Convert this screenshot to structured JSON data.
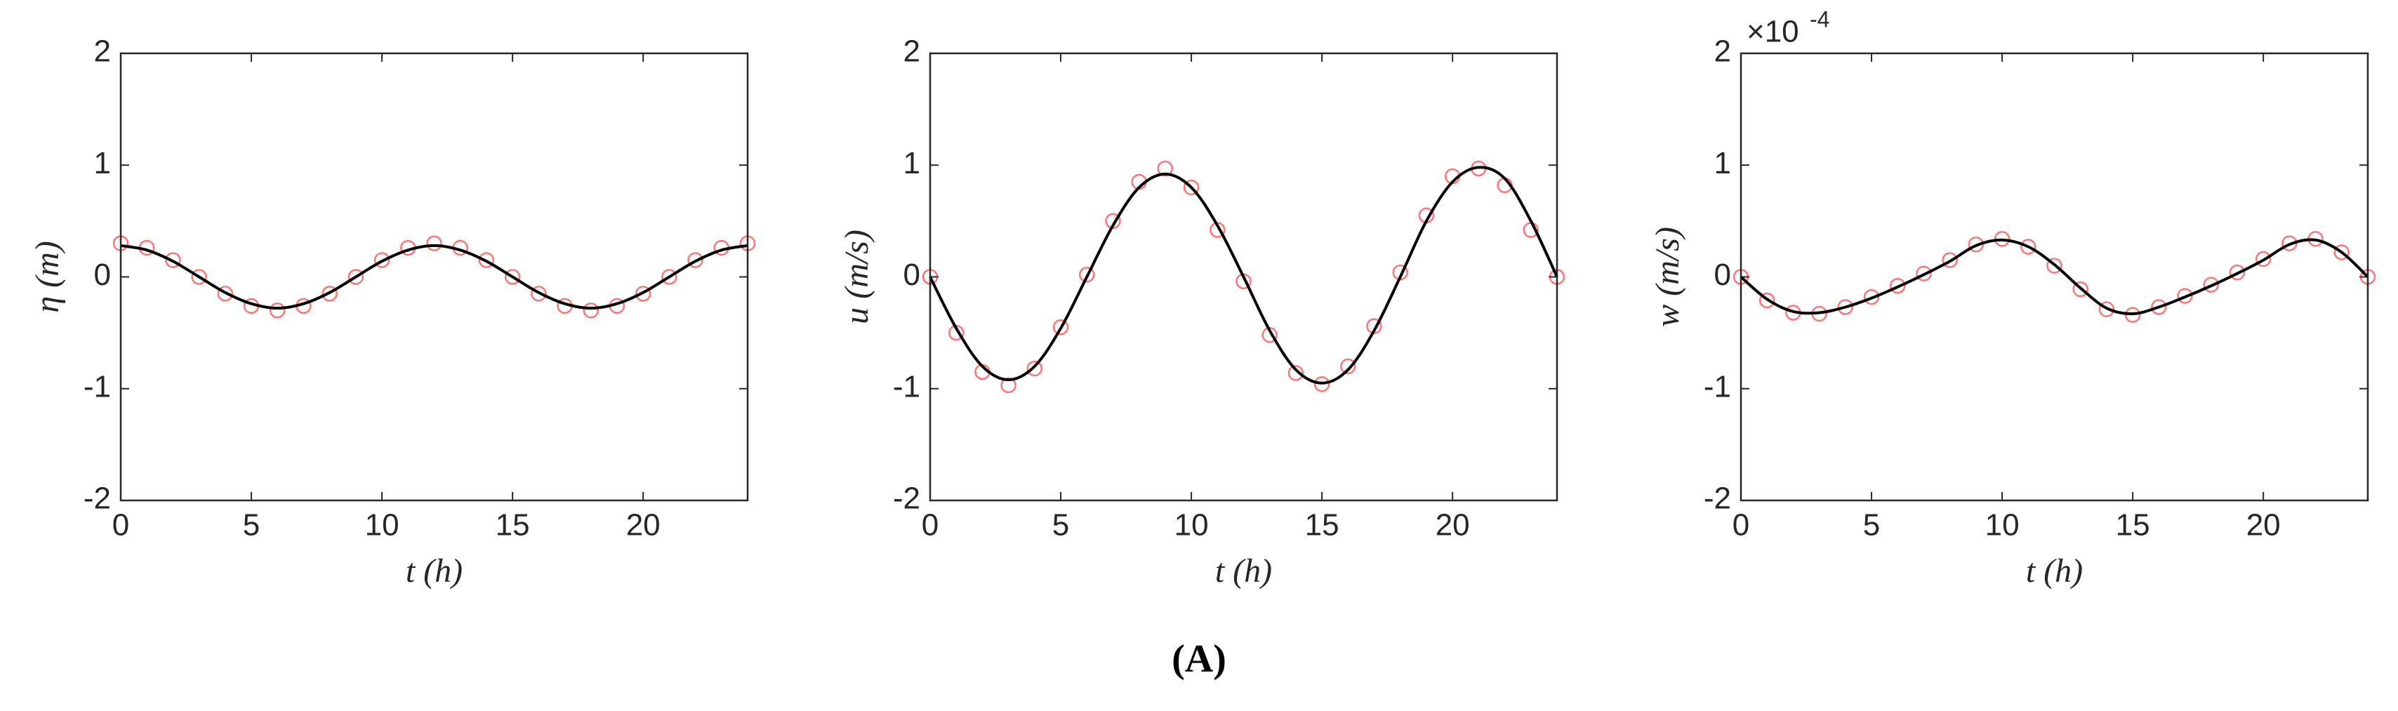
{
  "chart_data": [
    {
      "type": "line",
      "x_label": "t (h)",
      "y_label": "η (m)",
      "x": [
        0,
        1,
        2,
        3,
        4,
        5,
        6,
        7,
        8,
        9,
        10,
        11,
        12,
        13,
        14,
        15,
        16,
        17,
        18,
        19,
        20,
        21,
        22,
        23,
        24
      ],
      "series": [
        {
          "style": "markers",
          "color": "#ff0000",
          "values": [
            0.3,
            0.26,
            0.15,
            0,
            -0.15,
            -0.26,
            -0.3,
            -0.26,
            -0.15,
            0,
            0.15,
            0.26,
            0.3,
            0.26,
            0.15,
            0,
            -0.15,
            -0.26,
            -0.3,
            -0.26,
            -0.15,
            0,
            0.15,
            0.26,
            0.3
          ]
        },
        {
          "style": "line",
          "color": "#000000",
          "values": [
            0.28,
            0.24,
            0.14,
            0,
            -0.14,
            -0.24,
            -0.28,
            -0.24,
            -0.14,
            0,
            0.14,
            0.24,
            0.28,
            0.24,
            0.14,
            0,
            -0.14,
            -0.24,
            -0.28,
            -0.24,
            -0.14,
            0,
            0.14,
            0.24,
            0.28
          ]
        }
      ],
      "xlim": [
        0,
        24
      ],
      "xticks": [
        0,
        5,
        10,
        15,
        20
      ],
      "ylim": [
        -2,
        2
      ],
      "yticks": [
        -2,
        -1,
        0,
        1,
        2
      ]
    },
    {
      "type": "line",
      "x_label": "t (h)",
      "y_label": "u (m/s)",
      "x": [
        0,
        1,
        2,
        3,
        4,
        5,
        6,
        7,
        8,
        9,
        10,
        11,
        12,
        13,
        14,
        15,
        16,
        17,
        18,
        19,
        20,
        21,
        22,
        23,
        24
      ],
      "series": [
        {
          "style": "markers",
          "color": "#ff0000",
          "values": [
            0,
            -0.5,
            -0.85,
            -0.97,
            -0.82,
            -0.45,
            0.02,
            0.5,
            0.85,
            0.97,
            0.8,
            0.42,
            -0.04,
            -0.52,
            -0.86,
            -0.96,
            -0.8,
            -0.44,
            0.04,
            0.55,
            0.9,
            0.97,
            0.82,
            0.42,
            0
          ]
        },
        {
          "style": "line",
          "color": "#000000",
          "values": [
            0,
            -0.46,
            -0.8,
            -0.92,
            -0.8,
            -0.46,
            0,
            0.46,
            0.8,
            0.92,
            0.8,
            0.46,
            0,
            -0.48,
            -0.83,
            -0.95,
            -0.83,
            -0.48,
            0,
            0.5,
            0.85,
            0.98,
            0.88,
            0.5,
            0
          ]
        }
      ],
      "xlim": [
        0,
        24
      ],
      "xticks": [
        0,
        5,
        10,
        15,
        20
      ],
      "ylim": [
        -2,
        2
      ],
      "yticks": [
        -2,
        -1,
        0,
        1,
        2
      ]
    },
    {
      "type": "line",
      "x_label": "t (h)",
      "y_label": "w (m/s)",
      "y_multiplier": {
        "base": "×10",
        "exponent": "-4"
      },
      "x": [
        0,
        1,
        2,
        3,
        4,
        5,
        6,
        7,
        8,
        9,
        10,
        11,
        12,
        13,
        14,
        15,
        16,
        17,
        18,
        19,
        20,
        21,
        22,
        23,
        24
      ],
      "series": [
        {
          "style": "markers",
          "color": "#ff0000",
          "values": [
            0,
            -0.21,
            -0.32,
            -0.33,
            -0.27,
            -0.18,
            -0.08,
            0.03,
            0.15,
            0.29,
            0.34,
            0.27,
            0.1,
            -0.11,
            -0.29,
            -0.34,
            -0.27,
            -0.17,
            -0.07,
            0.04,
            0.16,
            0.3,
            0.34,
            0.22,
            0
          ]
        },
        {
          "style": "line",
          "color": "#000000",
          "values": [
            0,
            -0.2,
            -0.31,
            -0.32,
            -0.27,
            -0.19,
            -0.09,
            0.02,
            0.14,
            0.28,
            0.33,
            0.27,
            0.11,
            -0.1,
            -0.28,
            -0.33,
            -0.27,
            -0.18,
            -0.08,
            0.03,
            0.15,
            0.29,
            0.33,
            0.22,
            0
          ]
        }
      ],
      "xlim": [
        0,
        24
      ],
      "xticks": [
        0,
        5,
        10,
        15,
        20
      ],
      "ylim": [
        -2,
        2
      ],
      "yticks": [
        -2,
        -1,
        0,
        1,
        2
      ]
    }
  ],
  "caption": "(A)"
}
